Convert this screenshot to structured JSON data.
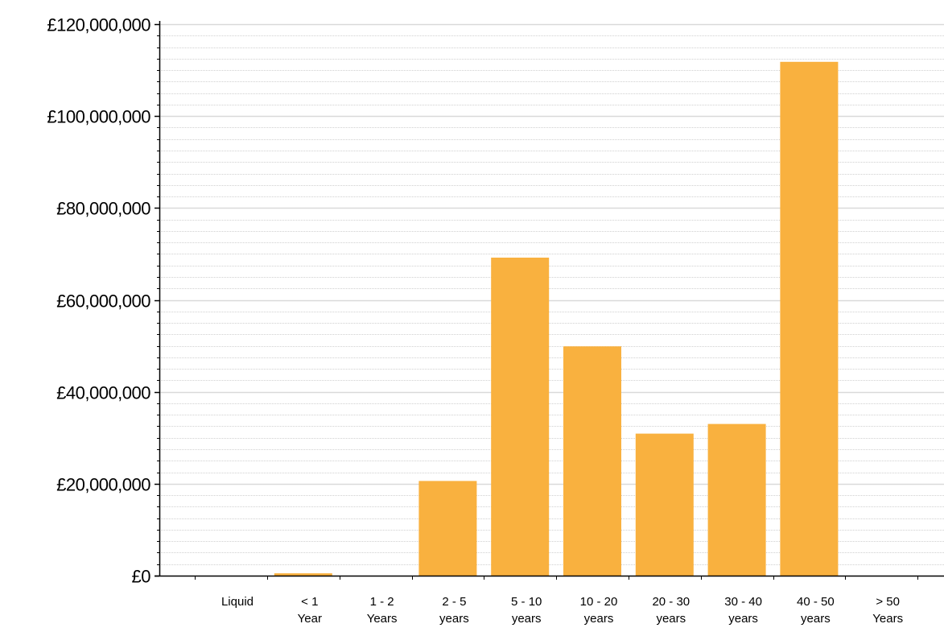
{
  "colors": {
    "bar": "#F9B13F",
    "major_grid": "#d9d9d9",
    "minor_grid": "#d0d0d0",
    "axis": "#000000",
    "background": "#ffffff"
  },
  "chart_data": {
    "type": "bar",
    "title": "",
    "xlabel": "",
    "ylabel": "",
    "ylim": [
      0,
      120000000
    ],
    "y_major_step": 20000000,
    "y_minor_step": 2500000,
    "grid": true,
    "legend": "none",
    "y_tick_labels": [
      "£0",
      "£20,000,000",
      "£40,000,000",
      "£60,000,000",
      "£80,000,000",
      "£100,000,000",
      "£120,000,000"
    ],
    "categories": [
      [
        "Liquid"
      ],
      [
        "< 1",
        "Year"
      ],
      [
        "1 - 2",
        "Years"
      ],
      [
        "2 - 5",
        "years"
      ],
      [
        "5 - 10",
        "years"
      ],
      [
        "10 - 20",
        "years"
      ],
      [
        "20 - 30",
        "years"
      ],
      [
        "30 - 40",
        "years"
      ],
      [
        "40 - 50",
        "years"
      ],
      [
        "> 50",
        "Years"
      ]
    ],
    "values": [
      0,
      500000,
      0,
      20600000,
      69200000,
      49900000,
      30900000,
      33000000,
      111800000,
      0
    ]
  }
}
